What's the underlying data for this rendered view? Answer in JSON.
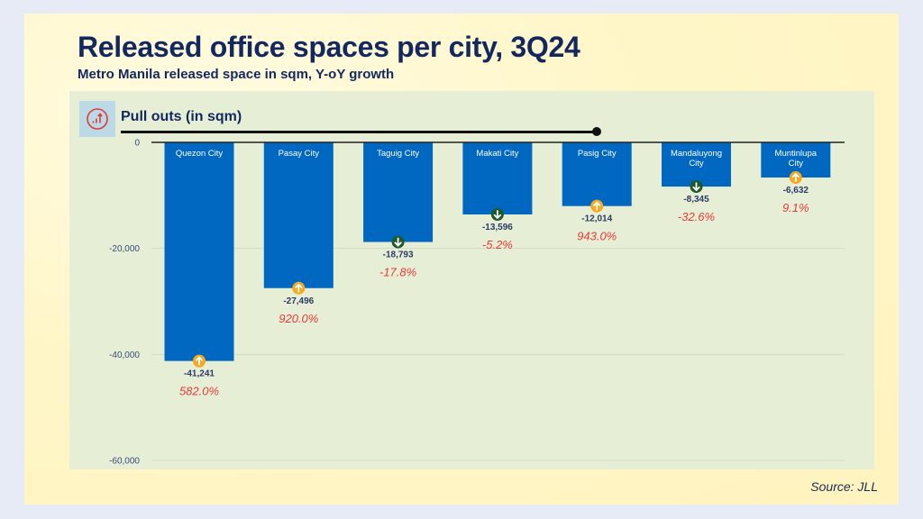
{
  "header": {
    "title": "Released office spaces per city, 3Q24",
    "subtitle": "Metro Manila released space in sqm, Y-oY growth"
  },
  "panel": {
    "title": "Pull outs (in sqm)",
    "icon": "growth-chart-icon"
  },
  "source": "Source: JLL",
  "colors": {
    "bar": "#0068c1",
    "up_marker": "#f6a821",
    "down_marker": "#1f5a2c",
    "growth_text": "#e8393a",
    "title": "#13285f"
  },
  "chart_data": {
    "type": "bar",
    "title": "Pull outs (in sqm)",
    "xlabel": "",
    "ylabel": "",
    "ylim": [
      -60000,
      0
    ],
    "yticks": [
      0,
      -20000,
      -40000,
      -60000
    ],
    "ytick_labels": [
      "0",
      "-20,000",
      "-40,000",
      "-60,000"
    ],
    "grid": true,
    "categories": [
      [
        "Quezon City"
      ],
      [
        "Pasay City"
      ],
      [
        "Taguig City"
      ],
      [
        "Makati City"
      ],
      [
        "Pasig City"
      ],
      [
        "Mandaluyong",
        "City"
      ],
      [
        "Muntinlupa",
        "City"
      ]
    ],
    "values": [
      -41241,
      -27496,
      -18793,
      -13596,
      -12014,
      -8345,
      -6632
    ],
    "value_labels": [
      "-41,241",
      "-27,496",
      "-18,793",
      "-13,596",
      "-12,014",
      "-8,345",
      "-6,632"
    ],
    "yoy_growth": [
      "582.0%",
      "920.0%",
      "-17.8%",
      "-5.2%",
      "943.0%",
      "-32.6%",
      "9.1%"
    ],
    "trend": [
      "up",
      "up",
      "down",
      "down",
      "up",
      "down",
      "up"
    ]
  }
}
